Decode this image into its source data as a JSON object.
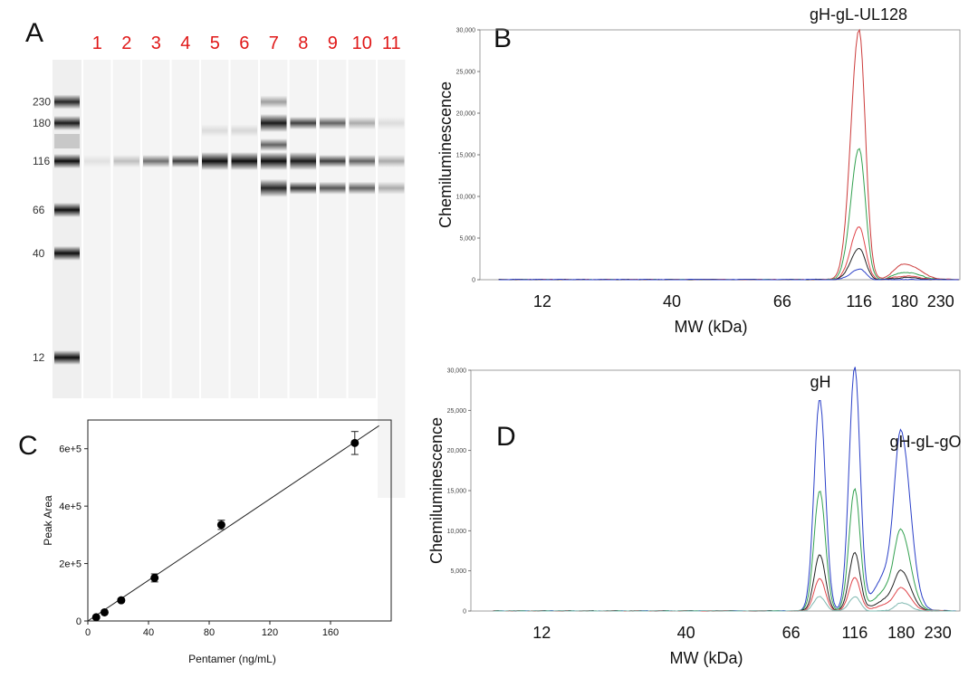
{
  "panels": {
    "A": "A",
    "B": "B",
    "C": "C",
    "D": "D"
  },
  "chart_data": [
    {
      "panel": "A",
      "type": "gel",
      "lane_labels": [
        "1",
        "2",
        "3",
        "4",
        "5",
        "6",
        "7",
        "8",
        "9",
        "10",
        "11"
      ],
      "marker_labels": [
        "230",
        "180",
        "116",
        "66",
        "40",
        "12"
      ],
      "marker_mw": [
        230,
        180,
        116,
        66,
        40,
        12
      ],
      "lanes": [
        {
          "label": "1",
          "bands": [
            {
              "mw": 116,
              "intensity": 0.08
            }
          ]
        },
        {
          "label": "2",
          "bands": [
            {
              "mw": 116,
              "intensity": 0.22
            }
          ]
        },
        {
          "label": "3",
          "bands": [
            {
              "mw": 116,
              "intensity": 0.55
            }
          ]
        },
        {
          "label": "4",
          "bands": [
            {
              "mw": 116,
              "intensity": 0.75
            }
          ]
        },
        {
          "label": "5",
          "bands": [
            {
              "mw": 116,
              "intensity": 0.95
            },
            {
              "mw": 165,
              "intensity": 0.1
            }
          ]
        },
        {
          "label": "6",
          "bands": [
            {
              "mw": 116,
              "intensity": 0.95
            },
            {
              "mw": 165,
              "intensity": 0.12
            }
          ]
        },
        {
          "label": "7",
          "bands": [
            {
              "mw": 230,
              "intensity": 0.35
            },
            {
              "mw": 180,
              "intensity": 0.9
            },
            {
              "mw": 140,
              "intensity": 0.6
            },
            {
              "mw": 116,
              "intensity": 0.95
            },
            {
              "mw": 85,
              "intensity": 0.85
            }
          ]
        },
        {
          "label": "8",
          "bands": [
            {
              "mw": 180,
              "intensity": 0.75
            },
            {
              "mw": 116,
              "intensity": 0.9
            },
            {
              "mw": 85,
              "intensity": 0.8
            }
          ]
        },
        {
          "label": "9",
          "bands": [
            {
              "mw": 180,
              "intensity": 0.6
            },
            {
              "mw": 116,
              "intensity": 0.75
            },
            {
              "mw": 85,
              "intensity": 0.65
            }
          ]
        },
        {
          "label": "10",
          "bands": [
            {
              "mw": 180,
              "intensity": 0.3
            },
            {
              "mw": 116,
              "intensity": 0.6
            },
            {
              "mw": 85,
              "intensity": 0.6
            }
          ]
        },
        {
          "label": "11",
          "bands": [
            {
              "mw": 180,
              "intensity": 0.1
            },
            {
              "mw": 116,
              "intensity": 0.3
            },
            {
              "mw": 85,
              "intensity": 0.3
            }
          ]
        }
      ]
    },
    {
      "panel": "B",
      "type": "line",
      "annotation": "gH-gL-UL128",
      "ylabel": "Chemiluminescence",
      "xlabel": "MW (kDa)",
      "ylim": [
        0,
        30000
      ],
      "y_ticks": [
        "0",
        "5,000",
        "10,000",
        "15,000",
        "20,000",
        "25,000",
        "30,000"
      ],
      "y_tick_values": [
        0,
        5000,
        10000,
        15000,
        20000,
        25000,
        30000
      ],
      "x_ticks": [
        "12",
        "40",
        "66",
        "116",
        "180",
        "230"
      ],
      "x_tick_values": [
        12,
        40,
        66,
        116,
        180,
        230
      ],
      "series": [
        {
          "color": "#cc3b3b",
          "peaks": [
            {
              "mw": 116,
              "height": 30000,
              "width": 0.06
            },
            {
              "mw": 180,
              "height": 1900,
              "width": 0.1
            }
          ]
        },
        {
          "color": "#33a150",
          "peaks": [
            {
              "mw": 116,
              "height": 15800,
              "width": 0.06
            },
            {
              "mw": 180,
              "height": 900,
              "width": 0.1
            }
          ]
        },
        {
          "color": "#e0454a",
          "peaks": [
            {
              "mw": 116,
              "height": 6400,
              "width": 0.06
            },
            {
              "mw": 180,
              "height": 450,
              "width": 0.1
            }
          ]
        },
        {
          "color": "#222222",
          "peaks": [
            {
              "mw": 116,
              "height": 3800,
              "width": 0.06
            },
            {
              "mw": 180,
              "height": 250,
              "width": 0.1
            }
          ]
        },
        {
          "color": "#2b40c8",
          "peaks": [
            {
              "mw": 116,
              "height": 1300,
              "width": 0.06
            }
          ]
        }
      ]
    },
    {
      "panel": "C",
      "type": "scatter",
      "xlabel": "Pentamer (ng/mL)",
      "ylabel": "Peak Area",
      "xlim": [
        0,
        200
      ],
      "ylim": [
        0,
        700000
      ],
      "x_ticks": [
        "0",
        "40",
        "80",
        "120",
        "160"
      ],
      "x_tick_values": [
        0,
        40,
        80,
        120,
        160
      ],
      "y_ticks": [
        "0",
        "2e+5",
        "4e+5",
        "6e+5"
      ],
      "y_tick_values": [
        0,
        200000,
        400000,
        600000
      ],
      "points": [
        {
          "x": 5.5,
          "y": 13000,
          "err": 4000
        },
        {
          "x": 11,
          "y": 30000,
          "err": 5000
        },
        {
          "x": 22,
          "y": 72000,
          "err": 6000
        },
        {
          "x": 44,
          "y": 150000,
          "err": 14000
        },
        {
          "x": 88,
          "y": 335000,
          "err": 16000
        },
        {
          "x": 176,
          "y": 620000,
          "err": 40000
        }
      ],
      "fit": {
        "x": [
          0,
          192
        ],
        "y": [
          -5000,
          680000
        ]
      }
    },
    {
      "panel": "D",
      "type": "line",
      "annotations": [
        "gH",
        "gH-gL-gO"
      ],
      "ylabel": "Chemiluminescence",
      "xlabel": "MW (kDa)",
      "ylim": [
        0,
        30000
      ],
      "y_ticks": [
        "0",
        "5,000",
        "10,000",
        "15,000",
        "20,000",
        "25,000",
        "30,000"
      ],
      "y_tick_values": [
        0,
        5000,
        10000,
        15000,
        20000,
        25000,
        30000
      ],
      "x_ticks": [
        "12",
        "40",
        "66",
        "116",
        "180",
        "230"
      ],
      "x_tick_values": [
        12,
        40,
        66,
        116,
        180,
        230
      ],
      "series": [
        {
          "color": "#2b40c8",
          "peaks": [
            {
              "mw": 85,
              "height": 26500,
              "width": 0.05
            },
            {
              "mw": 116,
              "height": 30300,
              "width": 0.05
            },
            {
              "mw": 180,
              "height": 19500,
              "width": 0.06
            },
            {
              "mw": 160,
              "height": 5000,
              "width": 0.12
            }
          ]
        },
        {
          "color": "#33a150",
          "peaks": [
            {
              "mw": 85,
              "height": 15000,
              "width": 0.05
            },
            {
              "mw": 116,
              "height": 15200,
              "width": 0.05
            },
            {
              "mw": 180,
              "height": 8500,
              "width": 0.06
            },
            {
              "mw": 160,
              "height": 2800,
              "width": 0.12
            }
          ]
        },
        {
          "color": "#222222",
          "peaks": [
            {
              "mw": 85,
              "height": 7000,
              "width": 0.05
            },
            {
              "mw": 116,
              "height": 7300,
              "width": 0.05
            },
            {
              "mw": 180,
              "height": 4200,
              "width": 0.06
            },
            {
              "mw": 160,
              "height": 1500,
              "width": 0.12
            }
          ]
        },
        {
          "color": "#e0454a",
          "peaks": [
            {
              "mw": 85,
              "height": 4000,
              "width": 0.05
            },
            {
              "mw": 116,
              "height": 4200,
              "width": 0.05
            },
            {
              "mw": 180,
              "height": 2400,
              "width": 0.06
            },
            {
              "mw": 160,
              "height": 800,
              "width": 0.12
            }
          ]
        },
        {
          "color": "#7fb8b0",
          "peaks": [
            {
              "mw": 85,
              "height": 1800,
              "width": 0.05
            },
            {
              "mw": 116,
              "height": 1800,
              "width": 0.05
            },
            {
              "mw": 180,
              "height": 1000,
              "width": 0.06
            }
          ]
        }
      ]
    }
  ]
}
